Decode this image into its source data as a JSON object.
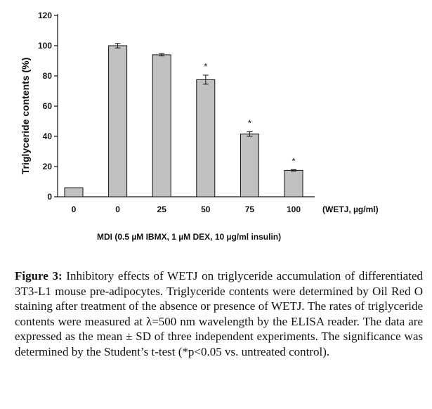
{
  "chart_data": {
    "type": "bar",
    "ylabel": "Triglyceride contents (%)",
    "ylim": [
      0,
      120
    ],
    "yticks": [
      0,
      20,
      40,
      60,
      80,
      100,
      120
    ],
    "x_unit_label": "(WETJ, µg/ml)",
    "group_label": "MDI (0.5 µM IBMX, 1 µM DEX, 10 µg/ml insulin)",
    "categories": [
      "0",
      "0",
      "25",
      "50",
      "75",
      "100"
    ],
    "values": [
      6,
      100,
      94,
      77.5,
      41.5,
      17.5
    ],
    "errors": [
      0,
      1.5,
      0.8,
      3,
      1.5,
      0.5
    ],
    "significance": [
      "",
      "",
      "",
      "*",
      "*",
      "*"
    ],
    "bar_color": "#c0c0c0",
    "grid": false
  },
  "caption": {
    "label": "Figure 3:",
    "text": " Inhibitory effects of WETJ on triglyceride accumulation of differentiated 3T3-L1 mouse pre-adipocytes. Triglyceride contents were determined by Oil Red O staining after treatment of the absence or presence of WETJ. The rates of triglyceride contents were measured at λ=500 nm wavelength by the ELISA reader. The data are expressed as the mean ± SD of three independent experiments. The significance was determined by the Student’s t-test (*p<0.05 vs. untreated control)."
  }
}
